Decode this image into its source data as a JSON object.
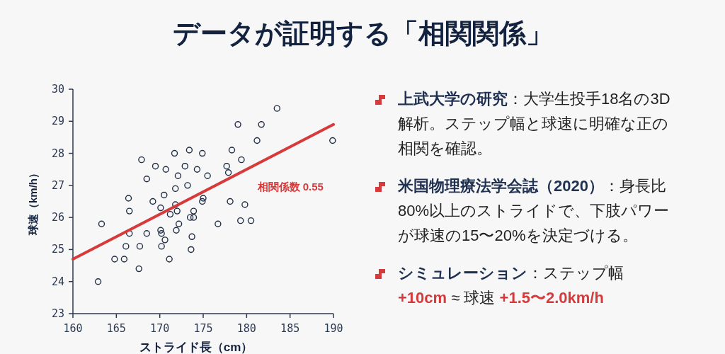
{
  "chart_data": {
    "type": "scatter",
    "title": "データが証明する「相関関係」",
    "xlabel": "ストライド長（cm）",
    "ylabel": "球速（km/h）",
    "xlim": [
      160,
      190
    ],
    "ylim": [
      23,
      30
    ],
    "xticks": [
      160,
      165,
      170,
      175,
      180,
      185,
      190
    ],
    "yticks": [
      23,
      24,
      25,
      26,
      27,
      28,
      29,
      30
    ],
    "grid": false,
    "series": [
      {
        "marker": "circle",
        "color": "#1f2d45",
        "x": [
          167.9,
          168.5,
          169.5,
          170.7,
          171.7,
          173.4,
          174.9,
          172.9,
          172.1,
          174.3,
          175.5,
          173.2,
          171.8,
          170.5,
          166.4,
          169.2,
          171.8,
          175.0,
          174.9,
          163.3,
          166.5,
          166.1,
          166.5,
          164.8,
          165.9,
          167.6,
          162.9,
          167.7,
          168.5,
          170.1,
          170.2,
          170.2,
          170.6,
          171.1,
          170.1,
          171.2,
          171.9,
          172.2,
          172.0,
          173.5,
          173.9,
          173.9,
          173.7,
          173.6,
          183.5,
          179.0,
          181.7,
          181.2,
          189.9,
          178.3,
          179.4,
          177.7,
          177.9,
          178.1,
          179.8,
          176.7,
          179.3,
          180.5
        ],
        "values": [
          27.8,
          27.2,
          27.6,
          27.5,
          28.0,
          28.1,
          28.0,
          27.6,
          27.3,
          27.5,
          27.3,
          27.0,
          26.9,
          26.7,
          26.6,
          26.5,
          26.4,
          26.6,
          26.5,
          25.8,
          26.2,
          25.1,
          25.5,
          24.7,
          24.7,
          24.4,
          24.0,
          25.1,
          25.5,
          25.6,
          25.5,
          25.1,
          25.3,
          24.7,
          26.3,
          26.1,
          25.6,
          25.8,
          26.2,
          26.0,
          26.0,
          26.2,
          25.4,
          25.0,
          29.4,
          28.9,
          28.9,
          28.4,
          28.4,
          28.1,
          27.8,
          27.6,
          27.4,
          26.5,
          26.4,
          25.8,
          25.9,
          25.9
        ]
      },
      {
        "type": "line",
        "color": "#d63a3a",
        "x": [
          160,
          190
        ],
        "values": [
          24.7,
          28.9
        ]
      }
    ],
    "annotations": [
      "相関係数 0.55",
      "**上武大学の研究**：大学生投手18名の3D解析。ステップ幅と球速に明確な正の相関を確認。",
      "**米国物理療法学会誌（2020）**：身長比80%以上のストライドで、下肢パワーが球速の15〜20%を決定づける。",
      "**シミュレーション**：ステップ幅 **+10cm** ≈ 球速 **+1.5〜2.0km/h**"
    ]
  }
}
